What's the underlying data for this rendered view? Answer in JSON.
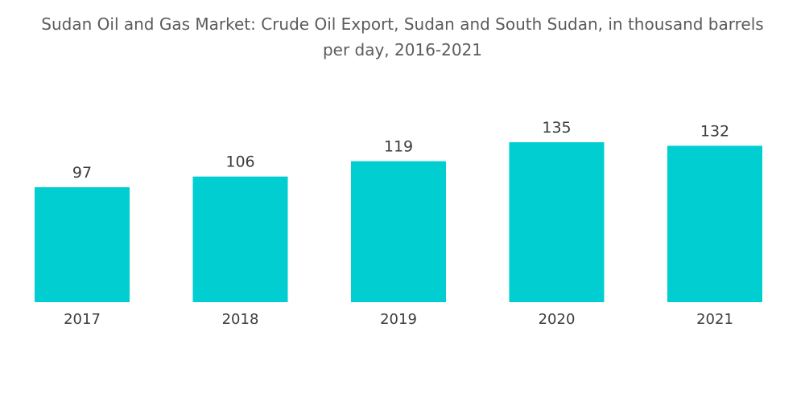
{
  "chart_data": {
    "type": "bar",
    "title": "Sudan Oil and Gas Market: Crude Oil Export, Sudan and South Sudan, in thousand barrels\nper day, 2016-2021",
    "categories": [
      "2017",
      "2018",
      "2019",
      "2020",
      "2021"
    ],
    "values": [
      97,
      106,
      119,
      135,
      132
    ],
    "xlabel": "",
    "ylabel": "",
    "ylim": [
      0,
      135
    ],
    "grid": false,
    "legend": "none",
    "bar_color": "#00ced1"
  }
}
